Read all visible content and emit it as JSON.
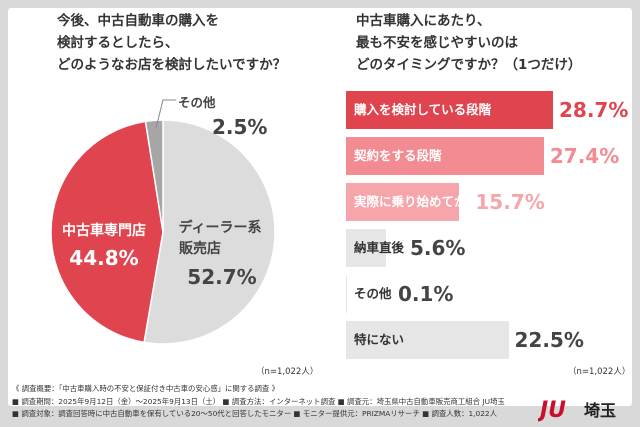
{
  "left_chart": {
    "question": "今後、中古自動車の購入を\n検討するとしたら、\nどのようなお店を検討したいですか？",
    "note": "（n=1,022人）"
  },
  "right_chart": {
    "question": "中古車購入にあたり、\n最も不安を感じやすいのは\nどのタイミングですか？（1つだけ）",
    "note": "（n=1,022人）"
  },
  "chart_data": [
    {
      "type": "pie",
      "title": "今後、中古自動車の購入を検討するとしたら、どのようなお店を検討したいですか？",
      "slices": [
        {
          "label": "ディーラー系\n販売店",
          "value": 52.7,
          "value_text": "52.7%",
          "color": "#dcdcdc"
        },
        {
          "label": "中古車専門店",
          "value": 44.8,
          "value_text": "44.8%",
          "color": "#e0454f"
        },
        {
          "label": "その他",
          "value": 2.5,
          "value_text": "2.5%",
          "color": "#a6a6a6"
        }
      ]
    },
    {
      "type": "bar",
      "orientation": "horizontal",
      "title": "中古車購入にあたり、最も不安を感じやすいのはどのタイミングですか？（1つだけ）",
      "categories": [
        "購入を検討している段階",
        "契約をする段階",
        "実際に乗り始めてから",
        "納車直後",
        "その他",
        "特にない"
      ],
      "values": [
        28.7,
        27.4,
        15.7,
        5.6,
        0.1,
        22.5
      ],
      "value_texts": [
        "28.7%",
        "27.4%",
        "15.7%",
        "5.6%",
        "0.1%",
        "22.5%"
      ],
      "colors": [
        "#e0454f",
        "#f28c92",
        "#f6a6ab",
        "#e6e6e6",
        "#e6e6e6",
        "#e6e6e6"
      ]
    }
  ],
  "footer": {
    "lines": [
      "《 調査概要：「中古車購入時の不安と保証付き中古車の安心感」に関する調査 》",
      "■ 調査期間：2025年9月12日（金）〜2025年9月13日（土） ■ 調査方法：インターネット調査 ■ 調査元：埼玉県中古自動車販売商工組合 JU埼玉",
      "■ 調査対象：調査回答時に中古自動車を保有している20〜50代と回答したモニター ■ モニター提供元：PRIZMAリサーチ ■ 調査人数：1,022人"
    ]
  },
  "logo": {
    "mark": "JU",
    "text": "埼玉",
    "color": "#c8102e"
  }
}
